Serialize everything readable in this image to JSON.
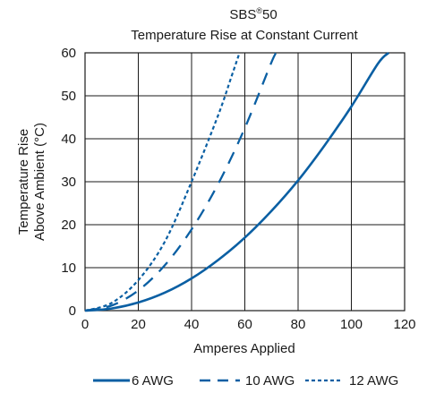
{
  "chart_data": {
    "type": "line",
    "title_main": "SBS",
    "title_reg": "®",
    "title_num": "50",
    "subtitle": "Temperature Rise at Constant Current",
    "xlabel": "Amperes Applied",
    "ylabel_line1": "Temperature Rise",
    "ylabel_line2": "Above Ambient (°C)",
    "xlim": [
      0,
      120
    ],
    "ylim": [
      0,
      60
    ],
    "xticks": [
      0,
      20,
      40,
      60,
      80,
      100,
      120
    ],
    "yticks": [
      0,
      10,
      20,
      30,
      40,
      50,
      60
    ],
    "grid": true,
    "legend_position": "bottom",
    "series": [
      {
        "name": "6 AWG",
        "style": "solid",
        "color": "#0a5fa3",
        "x": [
          0,
          10,
          20,
          30,
          40,
          50,
          60,
          70,
          80,
          90,
          100,
          110,
          114
        ],
        "y": [
          0,
          0.5,
          1.9,
          4.2,
          7.5,
          11.8,
          17.0,
          23.2,
          30.3,
          38.5,
          47.5,
          57.5,
          60
        ]
      },
      {
        "name": "10 AWG",
        "style": "dashed",
        "color": "#0a5fa3",
        "x": [
          0,
          10,
          20,
          30,
          40,
          50,
          60,
          70,
          72
        ],
        "y": [
          0,
          1.2,
          4.7,
          10.6,
          18.9,
          29.5,
          42.5,
          57.8,
          60
        ]
      },
      {
        "name": "12 AWG",
        "style": "dotted",
        "color": "#0a5fa3",
        "x": [
          0,
          10,
          20,
          30,
          40,
          50,
          55,
          58
        ],
        "y": [
          0,
          1.8,
          7.1,
          16.1,
          30.0,
          45.5,
          54.5,
          60
        ]
      }
    ]
  }
}
